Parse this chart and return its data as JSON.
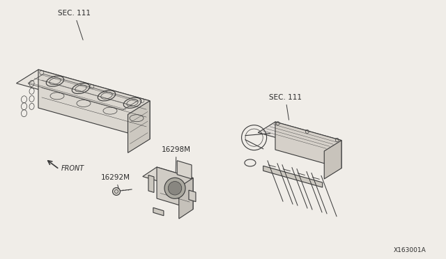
{
  "bg_color": "#f0ede8",
  "line_color": "#3a3a3a",
  "label_color": "#2a2a2a",
  "title_ref": "X163001A",
  "sec111_left_label": "SEC. 111",
  "sec111_right_label": "SEC. 111",
  "part_16298M": "16298M",
  "part_16292M": "16292M",
  "front_label": "FRONT",
  "fig_width": 6.4,
  "fig_height": 3.72,
  "dpi": 100
}
